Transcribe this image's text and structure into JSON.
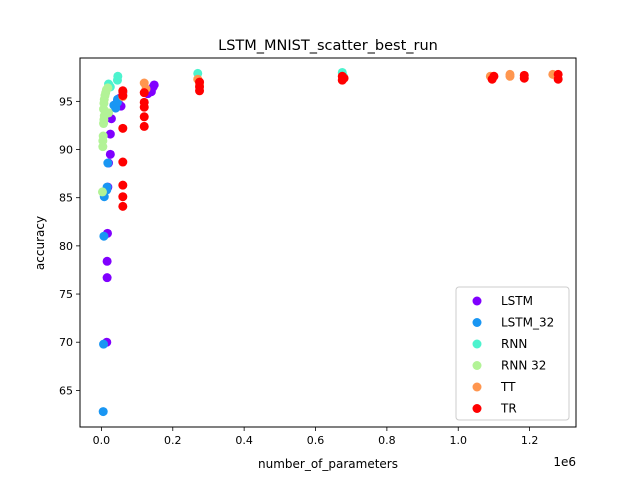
{
  "chart_data": {
    "type": "scatter",
    "title": "LSTM_MNIST_scatter_best_run",
    "xlabel": "number_of_parameters",
    "ylabel": "accuracy",
    "x_offset_label": "1e6",
    "xlim": [
      -0.06,
      1.33
    ],
    "ylim": [
      61.2,
      99.5
    ],
    "xticks": [
      0.0,
      0.2,
      0.4,
      0.6,
      0.8,
      1.0,
      1.2
    ],
    "xtick_labels": [
      "0.0",
      "0.2",
      "0.4",
      "0.6",
      "0.8",
      "1.0",
      "1.2"
    ],
    "yticks": [
      65,
      70,
      75,
      80,
      85,
      90,
      95
    ],
    "ytick_labels": [
      "65",
      "70",
      "75",
      "80",
      "85",
      "90",
      "95"
    ],
    "grid": false,
    "legend_position": "lower-right",
    "series": [
      {
        "name": "LSTM",
        "color": "#8000ff",
        "points": [
          [
            0.015,
            70.0
          ],
          [
            0.016,
            76.7
          ],
          [
            0.016,
            78.4
          ],
          [
            0.017,
            81.3
          ],
          [
            0.018,
            86.1
          ],
          [
            0.02,
            88.6
          ],
          [
            0.025,
            89.5
          ],
          [
            0.025,
            91.6
          ],
          [
            0.028,
            93.2
          ],
          [
            0.04,
            94.7
          ],
          [
            0.045,
            95.0
          ],
          [
            0.05,
            95.3
          ],
          [
            0.055,
            94.5
          ],
          [
            0.06,
            95.9
          ],
          [
            0.13,
            95.8
          ],
          [
            0.135,
            96.2
          ],
          [
            0.14,
            96.0
          ],
          [
            0.145,
            96.5
          ],
          [
            0.148,
            96.7
          ]
        ]
      },
      {
        "name": "LSTM_32",
        "color": "#1996f3",
        "points": [
          [
            0.005,
            62.8
          ],
          [
            0.006,
            69.8
          ],
          [
            0.007,
            81.0
          ],
          [
            0.008,
            85.1
          ],
          [
            0.015,
            85.8
          ],
          [
            0.016,
            86.1
          ],
          [
            0.018,
            88.6
          ],
          [
            0.035,
            94.6
          ],
          [
            0.04,
            94.3
          ],
          [
            0.045,
            95.2
          ],
          [
            0.045,
            94.9
          ]
        ]
      },
      {
        "name": "RNN",
        "color": "#4df3ce",
        "points": [
          [
            0.02,
            96.8
          ],
          [
            0.025,
            96.5
          ],
          [
            0.045,
            97.2
          ],
          [
            0.046,
            97.6
          ],
          [
            0.27,
            97.9
          ],
          [
            0.675,
            98.0
          ],
          [
            0.678,
            97.6
          ]
        ]
      },
      {
        "name": "RNN 32",
        "color": "#b2f396",
        "points": [
          [
            0.003,
            85.6
          ],
          [
            0.004,
            90.3
          ],
          [
            0.004,
            90.9
          ],
          [
            0.005,
            91.4
          ],
          [
            0.006,
            92.7
          ],
          [
            0.007,
            93.1
          ],
          [
            0.008,
            93.5
          ],
          [
            0.006,
            94.2
          ],
          [
            0.007,
            94.8
          ],
          [
            0.008,
            95.2
          ],
          [
            0.01,
            95.6
          ],
          [
            0.012,
            95.9
          ],
          [
            0.014,
            96.2
          ],
          [
            0.018,
            96.4
          ],
          [
            0.02,
            93.8
          ]
        ]
      },
      {
        "name": "TT",
        "color": "#ff964f",
        "points": [
          [
            0.06,
            96.0
          ],
          [
            0.06,
            95.5
          ],
          [
            0.12,
            96.9
          ],
          [
            0.125,
            96.3
          ],
          [
            0.27,
            97.3
          ],
          [
            0.275,
            96.7
          ],
          [
            1.09,
            97.6
          ],
          [
            1.145,
            97.8
          ],
          [
            1.145,
            97.6
          ],
          [
            1.265,
            97.8
          ]
        ]
      },
      {
        "name": "TR",
        "color": "#ff0000",
        "points": [
          [
            0.06,
            84.1
          ],
          [
            0.06,
            85.1
          ],
          [
            0.06,
            86.3
          ],
          [
            0.06,
            88.7
          ],
          [
            0.06,
            92.2
          ],
          [
            0.06,
            95.6
          ],
          [
            0.06,
            96.1
          ],
          [
            0.12,
            92.4
          ],
          [
            0.12,
            93.4
          ],
          [
            0.12,
            94.4
          ],
          [
            0.12,
            94.9
          ],
          [
            0.12,
            95.9
          ],
          [
            0.275,
            96.1
          ],
          [
            0.275,
            96.5
          ],
          [
            0.275,
            97.0
          ],
          [
            0.675,
            97.2
          ],
          [
            0.675,
            97.6
          ],
          [
            0.68,
            97.4
          ],
          [
            1.095,
            97.3
          ],
          [
            1.1,
            97.6
          ],
          [
            1.185,
            97.4
          ],
          [
            1.185,
            97.7
          ],
          [
            1.28,
            97.3
          ],
          [
            1.28,
            97.8
          ]
        ]
      }
    ]
  }
}
